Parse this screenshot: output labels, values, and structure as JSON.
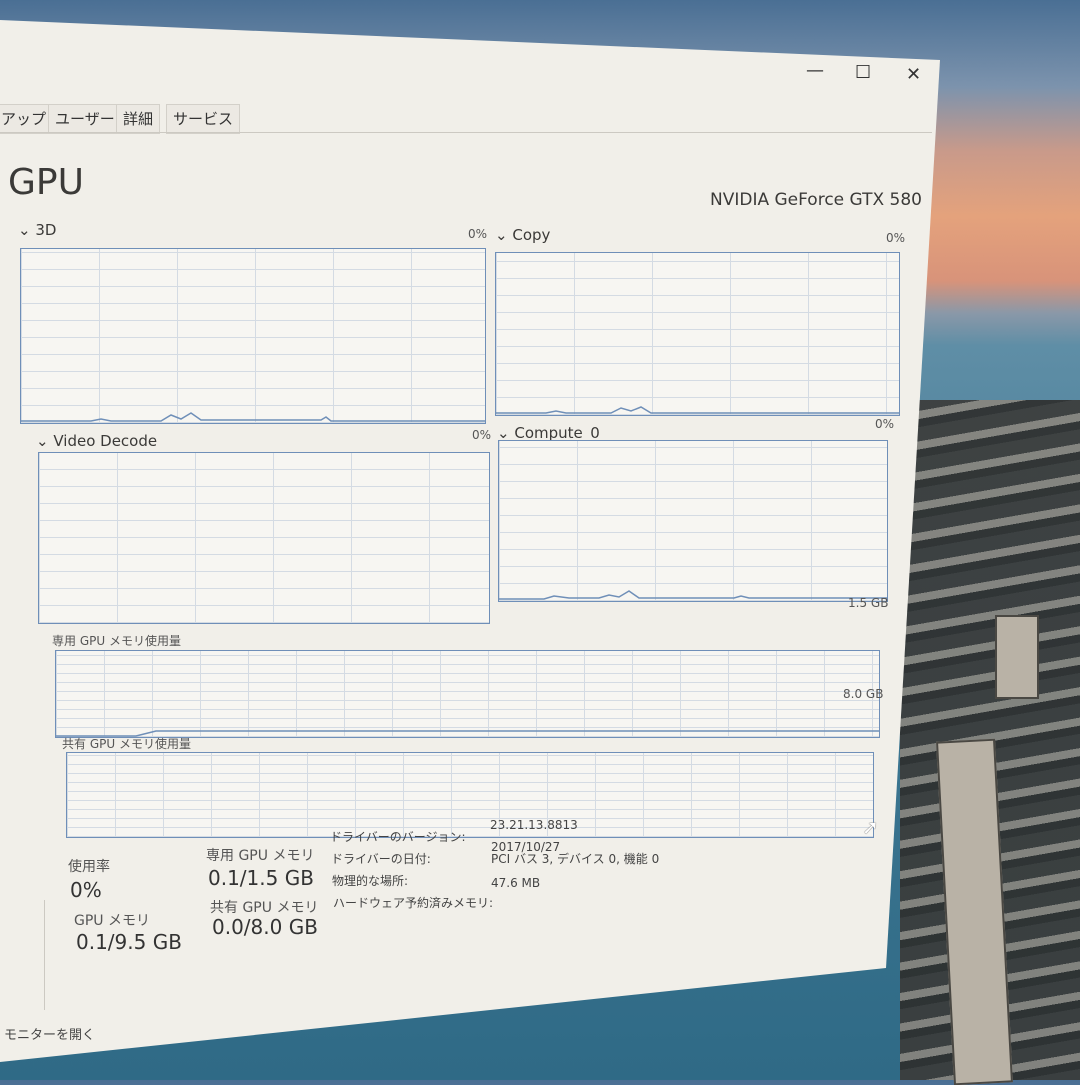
{
  "window": {
    "controls": {
      "minimize": "—",
      "maximize": "☐",
      "close": "✕"
    }
  },
  "tabs": [
    {
      "label": "アップ"
    },
    {
      "label": "ユーザー"
    },
    {
      "label": "詳細"
    },
    {
      "label": "サービス"
    }
  ],
  "header": {
    "title": "GPU",
    "device": "NVIDIA GeForce GTX 580"
  },
  "engines": [
    {
      "name": "3D",
      "value": "0%"
    },
    {
      "name": "Copy",
      "value": "0%"
    },
    {
      "name": "Video Decode",
      "value": "0%"
    },
    {
      "name": "Compute_0",
      "value": "0%"
    }
  ],
  "memory_graphs": {
    "dedicated": {
      "label": "専用 GPU メモリ使用量",
      "max": "1.5 GB"
    },
    "shared": {
      "label": "共有 GPU メモリ使用量",
      "max": "8.0 GB"
    }
  },
  "stats": {
    "utilization_label": "使用率",
    "utilization": "0%",
    "gpu_mem_label": "GPU メモリ",
    "gpu_mem": "0.1/9.5 GB",
    "dedicated_label": "専用 GPU メモリ",
    "dedicated": "0.1/1.5 GB",
    "shared_label": "共有 GPU メモリ",
    "shared": "0.0/8.0 GB"
  },
  "details": [
    {
      "label": "ドライバーのバージョン:",
      "value": "23.21.13.8813"
    },
    {
      "label": "ドライバーの日付:",
      "value": "2017/10/27"
    },
    {
      "label": "物理的な場所:",
      "value": "PCI バス 3, デバイス 0, 機能 0"
    },
    {
      "label": "ハードウェア予約済みメモリ:",
      "value": "47.6 MB"
    }
  ],
  "footer": {
    "open_monitor": "モニターを開く"
  },
  "colors": {
    "graph_line": "#6f8fb8",
    "window_bg": "#f1efe9"
  }
}
